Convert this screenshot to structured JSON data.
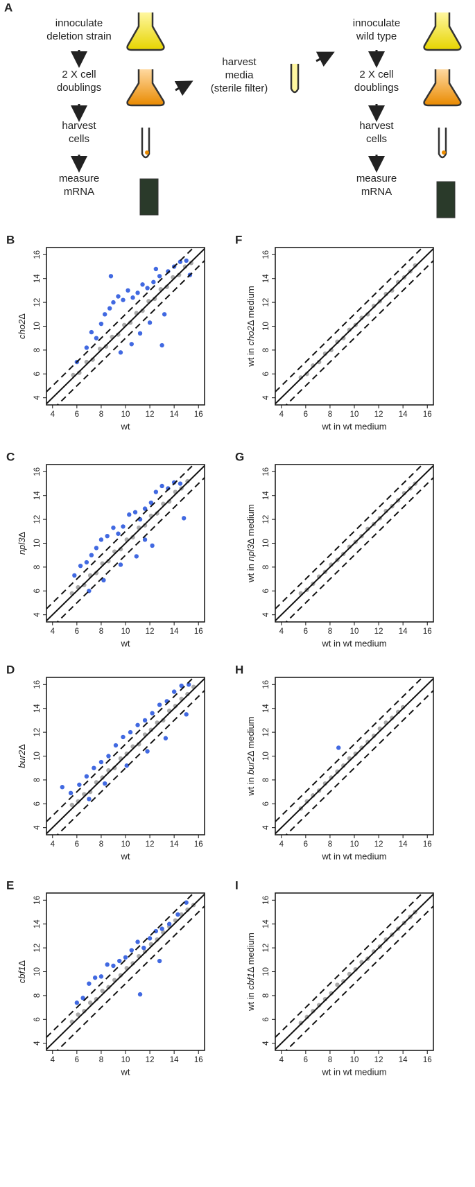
{
  "diagram": {
    "panel": "A",
    "left_steps": [
      [
        "innoculate",
        "deletion strain"
      ],
      [
        "2 X cell",
        "doublings"
      ],
      [
        "harvest",
        "cells"
      ],
      [
        "measure",
        "mRNA"
      ]
    ],
    "middle_step": [
      "harvest",
      "media",
      "(sterile filter)"
    ],
    "right_steps": [
      [
        "innoculate",
        "wild type"
      ],
      [
        "2 X cell",
        "doublings"
      ],
      [
        "harvest",
        "cells"
      ],
      [
        "measure",
        "mRNA"
      ]
    ]
  },
  "chart_data": [
    {
      "type": "scatter",
      "panel": "B",
      "xlabel": "wt",
      "ylabel": [
        "cho2",
        "Δ"
      ],
      "xlim": [
        3.5,
        16.5
      ],
      "ylim": [
        3.4,
        16.6
      ],
      "xticks": [
        4,
        6,
        8,
        10,
        12,
        14,
        16
      ],
      "yticks": [
        4,
        6,
        8,
        10,
        12,
        14,
        16
      ],
      "diagonal_offsets": [
        -1,
        0,
        1
      ],
      "series": [
        {
          "color": "#aaaaaa",
          "x": [
            5.7,
            6.2,
            6.8,
            7.3,
            7.9,
            8.4,
            8.9,
            9.4,
            9.9,
            10.4,
            10.9,
            11.4,
            11.9,
            12.4,
            12.9,
            13.4,
            13.9,
            14.4,
            14.9,
            15.4
          ],
          "y": [
            5.9,
            6.1,
            7.0,
            7.2,
            8.1,
            8.3,
            9.1,
            9.3,
            10.1,
            10.3,
            11.1,
            11.3,
            12.1,
            12.3,
            13.1,
            13.3,
            14.1,
            14.3,
            15.0,
            15.3
          ]
        },
        {
          "color": "#4169e1",
          "x": [
            6.0,
            6.8,
            7.2,
            7.6,
            8.0,
            8.3,
            8.7,
            9.0,
            9.4,
            9.8,
            10.2,
            10.6,
            11.0,
            11.4,
            11.8,
            12.3,
            12.8,
            13.0,
            13.5,
            14.0,
            14.5,
            15.0,
            8.8,
            9.6,
            10.5,
            11.2,
            12.0,
            13.2,
            12.5,
            15.3
          ],
          "y": [
            7.0,
            8.2,
            9.5,
            9.0,
            10.2,
            11.0,
            11.5,
            12.0,
            12.5,
            12.2,
            13.0,
            12.4,
            12.8,
            13.5,
            13.2,
            13.7,
            14.2,
            8.4,
            14.6,
            15.0,
            15.4,
            15.5,
            14.2,
            7.8,
            8.5,
            9.4,
            10.3,
            11.0,
            14.8,
            14.3
          ]
        }
      ]
    },
    {
      "type": "scatter",
      "panel": "F",
      "xlabel": "wt in wt medium",
      "ylabel": [
        "wt in ",
        "cho2",
        "Δ medium"
      ],
      "xlim": [
        3.5,
        16.5
      ],
      "ylim": [
        3.4,
        16.6
      ],
      "xticks": [
        4,
        6,
        8,
        10,
        12,
        14,
        16
      ],
      "yticks": [
        4,
        6,
        8,
        10,
        12,
        14,
        16
      ],
      "diagonal_offsets": [
        -1,
        0,
        1
      ],
      "series": [
        {
          "color": "#aaaaaa",
          "x": [
            5.6,
            6.1,
            6.6,
            7.1,
            7.6,
            8.1,
            8.6,
            9.1,
            9.6,
            10.1,
            10.6,
            11.1,
            11.6,
            12.1,
            12.6,
            13.1,
            13.6,
            14.1,
            14.6,
            15.0
          ],
          "y": [
            5.7,
            6.0,
            6.7,
            7.0,
            7.7,
            8.0,
            8.7,
            9.0,
            9.7,
            10.1,
            10.7,
            11.0,
            11.7,
            12.1,
            12.7,
            13.0,
            13.7,
            14.1,
            14.6,
            15.1
          ]
        }
      ]
    },
    {
      "type": "scatter",
      "panel": "C",
      "xlabel": "wt",
      "ylabel": [
        "npl3",
        "Δ"
      ],
      "xlim": [
        3.5,
        16.5
      ],
      "ylim": [
        3.4,
        16.6
      ],
      "xticks": [
        4,
        6,
        8,
        10,
        12,
        14,
        16
      ],
      "yticks": [
        4,
        6,
        8,
        10,
        12,
        14,
        16
      ],
      "diagonal_offsets": [
        -1,
        0,
        1
      ],
      "series": [
        {
          "color": "#aaaaaa",
          "x": [
            5.6,
            6.1,
            6.6,
            7.1,
            7.6,
            8.1,
            8.6,
            9.1,
            9.6,
            10.1,
            10.6,
            11.1,
            11.6,
            12.1,
            12.6,
            13.1,
            13.6,
            14.1,
            14.6,
            15.1
          ],
          "y": [
            5.8,
            6.3,
            6.5,
            7.3,
            7.5,
            8.3,
            8.5,
            9.3,
            9.5,
            10.3,
            10.5,
            11.3,
            11.5,
            12.3,
            12.5,
            13.3,
            13.5,
            14.3,
            14.6,
            15.2
          ]
        },
        {
          "color": "#4169e1",
          "x": [
            5.8,
            6.3,
            6.8,
            7.2,
            7.6,
            8.0,
            8.5,
            9.0,
            9.4,
            9.8,
            10.3,
            10.8,
            11.2,
            11.6,
            12.1,
            12.5,
            13.0,
            13.5,
            14.0,
            14.5,
            8.2,
            9.6,
            10.9,
            12.2,
            14.8,
            7.0,
            11.6
          ],
          "y": [
            7.3,
            8.1,
            8.4,
            9.0,
            9.6,
            10.3,
            10.6,
            11.3,
            10.8,
            11.4,
            12.4,
            12.6,
            12.0,
            12.9,
            13.4,
            14.3,
            14.8,
            14.6,
            15.1,
            15.0,
            6.9,
            8.2,
            8.9,
            9.8,
            12.1,
            6.0,
            10.3
          ]
        }
      ]
    },
    {
      "type": "scatter",
      "panel": "G",
      "xlabel": "wt in wt medium",
      "ylabel": [
        "wt in ",
        "npl3",
        "Δ medium"
      ],
      "xlim": [
        3.5,
        16.5
      ],
      "ylim": [
        3.4,
        16.6
      ],
      "xticks": [
        4,
        6,
        8,
        10,
        12,
        14,
        16
      ],
      "yticks": [
        4,
        6,
        8,
        10,
        12,
        14,
        16
      ],
      "diagonal_offsets": [
        -1,
        0,
        1
      ],
      "series": [
        {
          "color": "#aaaaaa",
          "x": [
            5.6,
            6.1,
            6.6,
            7.1,
            7.6,
            8.1,
            8.6,
            9.1,
            9.6,
            10.1,
            10.6,
            11.1,
            11.6,
            12.1,
            12.6,
            13.1,
            13.6,
            14.1,
            14.6,
            15.0
          ],
          "y": [
            5.8,
            6.1,
            6.6,
            7.2,
            7.6,
            8.2,
            8.6,
            9.1,
            9.7,
            10.1,
            10.6,
            11.2,
            11.6,
            12.1,
            12.7,
            13.1,
            13.6,
            14.2,
            14.6,
            15.0
          ]
        }
      ]
    },
    {
      "type": "scatter",
      "panel": "D",
      "xlabel": "wt",
      "ylabel": [
        "bur2",
        "Δ"
      ],
      "xlim": [
        3.5,
        16.5
      ],
      "ylim": [
        3.4,
        16.6
      ],
      "xticks": [
        4,
        6,
        8,
        10,
        12,
        14,
        16
      ],
      "yticks": [
        4,
        6,
        8,
        10,
        12,
        14,
        16
      ],
      "diagonal_offsets": [
        -1,
        0,
        1
      ],
      "series": [
        {
          "color": "#aaaaaa",
          "x": [
            5.6,
            6.1,
            6.6,
            7.1,
            7.6,
            8.1,
            8.6,
            9.1,
            9.6,
            10.1,
            10.6,
            11.1,
            11.6,
            12.1,
            12.6,
            13.1,
            13.6,
            14.1,
            14.6,
            15.1,
            15.6
          ],
          "y": [
            5.9,
            6.2,
            6.8,
            7.0,
            7.8,
            8.2,
            8.8,
            9.0,
            9.8,
            10.2,
            10.8,
            11.0,
            11.8,
            12.2,
            12.8,
            13.0,
            13.8,
            14.2,
            14.8,
            15.2,
            15.8
          ]
        },
        {
          "color": "#4169e1",
          "x": [
            4.8,
            5.5,
            6.2,
            6.8,
            7.4,
            8.0,
            8.6,
            9.2,
            9.8,
            10.4,
            11.0,
            11.6,
            12.2,
            12.8,
            13.4,
            14.0,
            14.6,
            15.2,
            8.3,
            10.1,
            11.8,
            13.3,
            15.0,
            7.0
          ],
          "y": [
            7.4,
            6.9,
            7.6,
            8.3,
            9.0,
            9.5,
            10.0,
            10.9,
            11.6,
            12.0,
            12.6,
            13.0,
            13.6,
            14.3,
            14.6,
            15.4,
            15.9,
            16.0,
            7.7,
            9.2,
            10.4,
            11.5,
            13.5,
            6.4
          ]
        }
      ]
    },
    {
      "type": "scatter",
      "panel": "H",
      "xlabel": "wt in wt medium",
      "ylabel": [
        "wt in ",
        "bur2",
        "Δ medium"
      ],
      "xlim": [
        3.5,
        16.5
      ],
      "ylim": [
        3.4,
        16.6
      ],
      "xticks": [
        4,
        6,
        8,
        10,
        12,
        14,
        16
      ],
      "yticks": [
        4,
        6,
        8,
        10,
        12,
        14,
        16
      ],
      "diagonal_offsets": [
        -1,
        0,
        1
      ],
      "series": [
        {
          "color": "#aaaaaa",
          "x": [
            5.6,
            6.1,
            6.6,
            7.1,
            7.6,
            8.1,
            8.6,
            9.1,
            9.6,
            10.1,
            10.6,
            11.1,
            11.6,
            12.1,
            12.6,
            13.1,
            13.6,
            14.0
          ],
          "y": [
            5.6,
            6.2,
            6.7,
            7.1,
            7.7,
            8.2,
            8.7,
            9.2,
            9.8,
            10.2,
            10.7,
            11.2,
            11.7,
            12.3,
            12.8,
            13.2,
            13.7,
            14.1
          ]
        },
        {
          "color": "#4169e1",
          "x": [
            8.7
          ],
          "y": [
            10.7
          ]
        }
      ]
    },
    {
      "type": "scatter",
      "panel": "E",
      "xlabel": "wt",
      "ylabel": [
        "cbf1",
        "Δ"
      ],
      "xlim": [
        3.5,
        16.5
      ],
      "ylim": [
        3.4,
        16.6
      ],
      "xticks": [
        4,
        6,
        8,
        10,
        12,
        14,
        16
      ],
      "yticks": [
        4,
        6,
        8,
        10,
        12,
        14,
        16
      ],
      "diagonal_offsets": [
        -1,
        0,
        1
      ],
      "series": [
        {
          "color": "#aaaaaa",
          "x": [
            5.6,
            6.1,
            6.6,
            7.1,
            7.6,
            8.1,
            8.6,
            9.1,
            9.6,
            10.1,
            10.6,
            11.1,
            11.6,
            12.1,
            12.6,
            13.1,
            13.6,
            14.1,
            14.6,
            15.1,
            15.6
          ],
          "y": [
            5.8,
            6.4,
            6.7,
            7.4,
            7.7,
            8.4,
            8.7,
            9.3,
            9.7,
            10.3,
            10.7,
            11.3,
            11.7,
            12.3,
            12.7,
            13.3,
            13.8,
            14.3,
            14.8,
            15.2,
            15.6
          ]
        },
        {
          "color": "#4169e1",
          "x": [
            6.0,
            6.5,
            7.0,
            7.5,
            8.0,
            8.5,
            9.0,
            9.5,
            10.0,
            10.5,
            11.0,
            11.5,
            12.0,
            12.5,
            13.0,
            13.6,
            14.3,
            15.0,
            11.2,
            12.8
          ],
          "y": [
            7.4,
            7.8,
            9.0,
            9.5,
            9.6,
            10.6,
            10.5,
            10.9,
            11.2,
            11.8,
            12.5,
            12.0,
            12.8,
            13.4,
            13.6,
            14.0,
            14.8,
            15.8,
            8.1,
            10.9
          ]
        }
      ]
    },
    {
      "type": "scatter",
      "panel": "I",
      "xlabel": "wt in wt medium",
      "ylabel": [
        "wt in ",
        "cbf1",
        "Δ medium"
      ],
      "xlim": [
        3.5,
        16.5
      ],
      "ylim": [
        3.4,
        16.6
      ],
      "xticks": [
        4,
        6,
        8,
        10,
        12,
        14,
        16
      ],
      "yticks": [
        4,
        6,
        8,
        10,
        12,
        14,
        16
      ],
      "diagonal_offsets": [
        -1,
        0,
        1
      ],
      "series": [
        {
          "color": "#aaaaaa",
          "x": [
            5.6,
            6.1,
            6.6,
            7.1,
            7.6,
            8.1,
            8.6,
            9.1,
            9.6,
            10.1,
            10.6,
            11.1,
            11.6,
            12.1,
            12.6,
            13.1,
            13.6,
            14.1,
            14.6,
            15.0
          ],
          "y": [
            5.7,
            6.2,
            6.7,
            7.2,
            7.7,
            8.2,
            8.9,
            9.2,
            9.8,
            10.2,
            10.8,
            11.1,
            11.7,
            12.1,
            12.7,
            13.1,
            13.6,
            14.1,
            14.6,
            15.0
          ]
        }
      ]
    }
  ]
}
